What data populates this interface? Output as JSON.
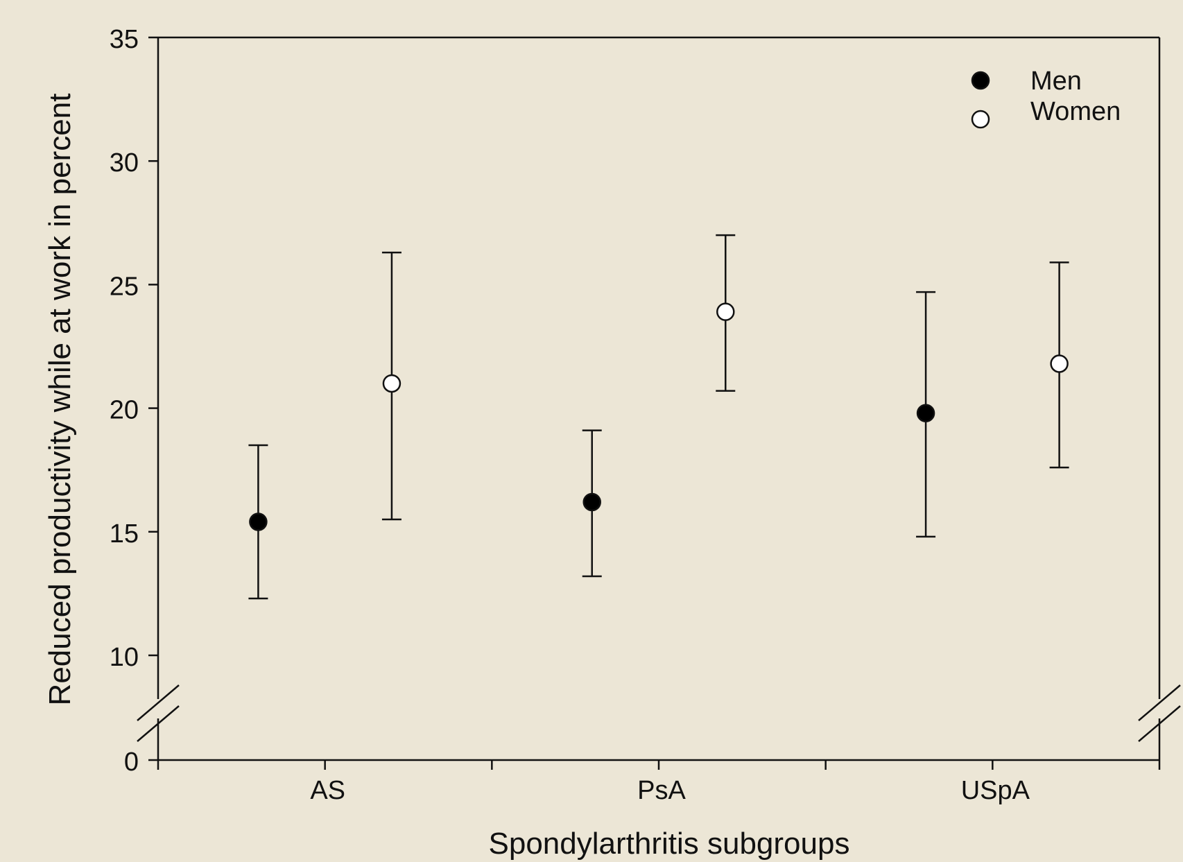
{
  "chart_data": {
    "type": "scatter",
    "title": "",
    "xlabel": "Spondylarthritis subgroups",
    "ylabel": "Reduced productivity while at work in percent",
    "categories": [
      "AS",
      "PsA",
      "USpA"
    ],
    "y_ticks": [
      0,
      10,
      15,
      20,
      25,
      30,
      35
    ],
    "y_tick_labels": [
      "0",
      "10",
      "15",
      "20",
      "25",
      "30",
      "35"
    ],
    "ylim": [
      0,
      35
    ],
    "y_axis_break": [
      0,
      10
    ],
    "grid": false,
    "legend_position": "top-right",
    "series": [
      {
        "name": "Men",
        "marker": "filled-circle",
        "color": "#000000",
        "values": [
          15.4,
          16.2,
          19.8
        ],
        "error_low": [
          12.3,
          13.2,
          14.8
        ],
        "error_high": [
          18.5,
          19.1,
          24.7
        ]
      },
      {
        "name": "Women",
        "marker": "open-circle",
        "color": "#ffffff",
        "values": [
          21.0,
          23.9,
          21.8
        ],
        "error_low": [
          15.5,
          20.7,
          17.6
        ],
        "error_high": [
          26.3,
          27.0,
          25.9
        ]
      }
    ]
  }
}
